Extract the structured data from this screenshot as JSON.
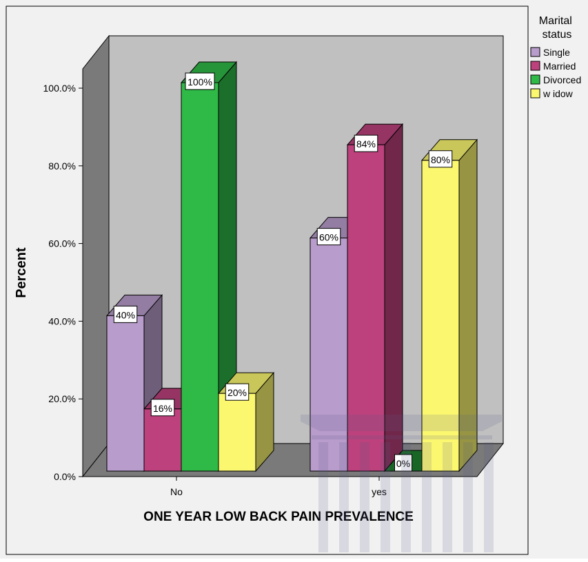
{
  "chart_data": {
    "type": "bar",
    "title": "",
    "xlabel": "ONE YEAR LOW BACK PAIN PREVALENCE",
    "ylabel": "Percent",
    "categories": [
      "No",
      "yes"
    ],
    "ylim": [
      0,
      100
    ],
    "y_ticks": [
      "0.0%",
      "20.0%",
      "40.0%",
      "60.0%",
      "80.0%",
      "100.0%"
    ],
    "legend_title": "Marital status",
    "legend_position": "top-right",
    "grid": false,
    "three_d": true,
    "series": [
      {
        "name": "Single",
        "values": [
          40,
          60
        ],
        "labels": [
          "40%",
          "60%"
        ],
        "color": "#b89ccb"
      },
      {
        "name": "Married",
        "values": [
          16,
          84
        ],
        "labels": [
          "16%",
          "84%"
        ],
        "color": "#bc417c"
      },
      {
        "name": "Divorced",
        "values": [
          100,
          0
        ],
        "labels": [
          "100%",
          "0%"
        ],
        "color": "#2fb947"
      },
      {
        "name": "w idow",
        "values": [
          20,
          80
        ],
        "labels": [
          "20%",
          "80%"
        ],
        "color": "#fbf870"
      }
    ]
  }
}
